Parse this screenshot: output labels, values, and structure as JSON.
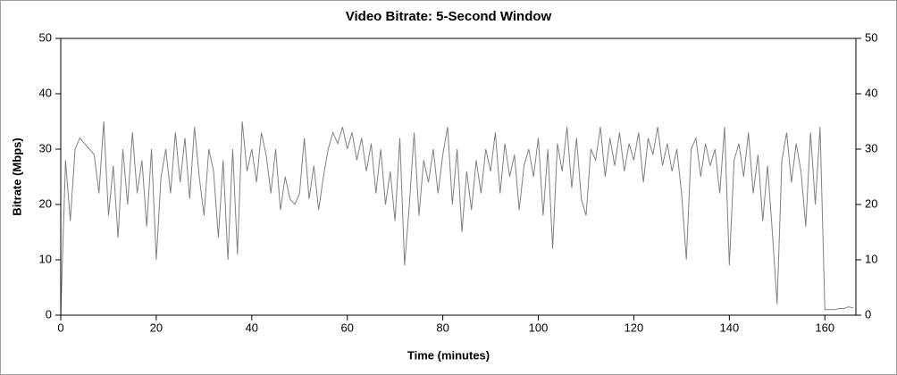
{
  "chart_data": {
    "type": "line",
    "title": "Video Bitrate: 5-Second Window",
    "xlabel": "Time (minutes)",
    "ylabel": "Bitrate (Mbps)",
    "x": [
      0,
      1,
      2,
      3,
      4,
      5,
      6,
      7,
      8,
      9,
      10,
      11,
      12,
      13,
      14,
      15,
      16,
      17,
      18,
      19,
      20,
      21,
      22,
      23,
      24,
      25,
      26,
      27,
      28,
      29,
      30,
      31,
      32,
      33,
      34,
      35,
      36,
      37,
      38,
      39,
      40,
      41,
      42,
      43,
      44,
      45,
      46,
      47,
      48,
      49,
      50,
      51,
      52,
      53,
      54,
      55,
      56,
      57,
      58,
      59,
      60,
      61,
      62,
      63,
      64,
      65,
      66,
      67,
      68,
      69,
      70,
      71,
      72,
      73,
      74,
      75,
      76,
      77,
      78,
      79,
      80,
      81,
      82,
      83,
      84,
      85,
      86,
      87,
      88,
      89,
      90,
      91,
      92,
      93,
      94,
      95,
      96,
      97,
      98,
      99,
      100,
      101,
      102,
      103,
      104,
      105,
      106,
      107,
      108,
      109,
      110,
      111,
      112,
      113,
      114,
      115,
      116,
      117,
      118,
      119,
      120,
      121,
      122,
      123,
      124,
      125,
      126,
      127,
      128,
      129,
      130,
      131,
      132,
      133,
      134,
      135,
      136,
      137,
      138,
      139,
      140,
      141,
      142,
      143,
      144,
      145,
      146,
      147,
      148,
      149,
      150,
      151,
      152,
      153,
      154,
      155,
      156,
      157,
      158,
      159,
      160,
      161,
      162,
      163,
      164,
      165,
      166
    ],
    "series": [
      {
        "name": "Bitrate",
        "color": "#808080",
        "values": [
          0,
          28,
          17,
          30,
          32,
          31,
          30,
          29,
          22,
          35,
          18,
          27,
          14,
          30,
          20,
          33,
          22,
          28,
          16,
          30,
          10,
          25,
          30,
          22,
          33,
          24,
          32,
          21,
          34,
          25,
          18,
          30,
          26,
          14,
          28,
          10,
          30,
          11,
          35,
          26,
          30,
          24,
          33,
          29,
          22,
          30,
          19,
          25,
          21,
          20,
          22,
          32,
          21,
          27,
          19,
          25,
          30,
          33,
          31,
          34,
          30,
          33,
          28,
          32,
          26,
          31,
          22,
          30,
          20,
          26,
          17,
          32,
          9,
          20,
          33,
          18,
          28,
          24,
          30,
          22,
          29,
          34,
          20,
          30,
          15,
          26,
          19,
          28,
          22,
          30,
          26,
          33,
          22,
          31,
          25,
          29,
          19,
          27,
          30,
          25,
          32,
          18,
          30,
          12,
          31,
          26,
          34,
          23,
          32,
          21,
          18,
          30,
          28,
          34,
          25,
          32,
          27,
          33,
          26,
          31,
          28,
          33,
          24,
          32,
          29,
          34,
          27,
          31,
          26,
          30,
          22,
          10,
          30,
          32,
          25,
          31,
          27,
          30,
          22,
          34,
          9,
          28,
          31,
          25,
          33,
          22,
          29,
          17,
          27,
          15,
          2,
          28,
          33,
          24,
          31,
          26,
          16,
          33,
          20,
          34,
          1,
          1,
          1,
          1.2,
          1.2,
          1.5,
          1.3
        ]
      }
    ],
    "xlim": [
      0,
      166.5
    ],
    "ylim": [
      0,
      50
    ],
    "y2lim": [
      0,
      50
    ],
    "xticks": [
      0,
      20,
      40,
      60,
      80,
      100,
      120,
      140,
      160
    ],
    "yticks": [
      0,
      10,
      20,
      30,
      40,
      50
    ],
    "y2ticks": [
      0,
      10,
      20,
      30,
      40,
      50
    ],
    "grid": false
  }
}
